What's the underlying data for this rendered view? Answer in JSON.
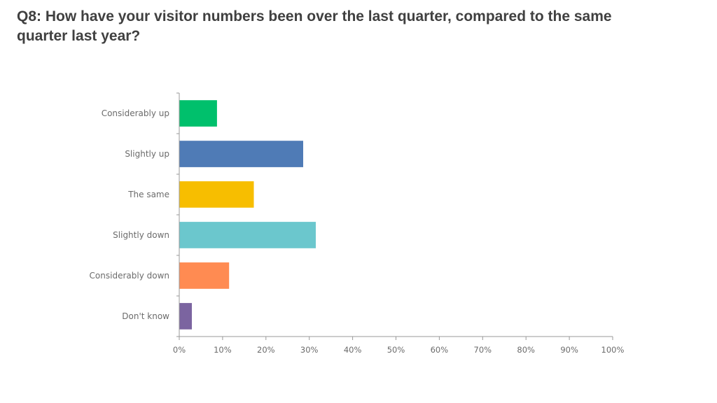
{
  "page": {
    "title": "Q8: How have your visitor numbers been over the last quarter, compared to the same quarter last year?"
  },
  "chart_data": {
    "type": "bar",
    "orientation": "horizontal",
    "categories": [
      "Considerably up",
      "Slightly up",
      "The same",
      "Slightly down",
      "Considerably down",
      "Don't know"
    ],
    "values": [
      8.7,
      28.6,
      17.2,
      31.5,
      11.5,
      2.9
    ],
    "colors": [
      "#00C06C",
      "#4F7BB6",
      "#F7BE00",
      "#6BC7CD",
      "#FF8B52",
      "#7B64A0"
    ],
    "xlim": [
      0,
      100
    ],
    "xticks": [
      "0%",
      "10%",
      "20%",
      "30%",
      "40%",
      "50%",
      "60%",
      "70%",
      "80%",
      "90%",
      "100%"
    ],
    "grid": false,
    "legend": "none"
  }
}
